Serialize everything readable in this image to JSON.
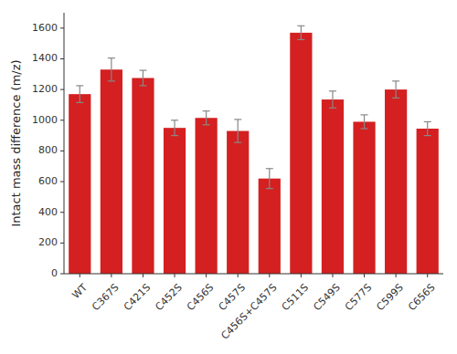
{
  "chart_data": {
    "type": "bar",
    "categories": [
      "WT",
      "C367S",
      "C421S",
      "C452S",
      "C456S",
      "C457S",
      "C456S+C457S",
      "C511S",
      "C549S",
      "C577S",
      "C599S",
      "C656S"
    ],
    "values": [
      1170,
      1330,
      1275,
      950,
      1015,
      930,
      620,
      1570,
      1135,
      990,
      1200,
      945
    ],
    "errors": [
      55,
      75,
      50,
      50,
      45,
      75,
      65,
      45,
      55,
      45,
      55,
      45
    ],
    "color": "#d42020",
    "ylabel": "Intact mass difference (m/z)",
    "ylim": [
      0,
      1700
    ],
    "yticks": [
      0,
      200,
      400,
      600,
      800,
      1000,
      1200,
      1400,
      1600
    ],
    "grid": false
  }
}
